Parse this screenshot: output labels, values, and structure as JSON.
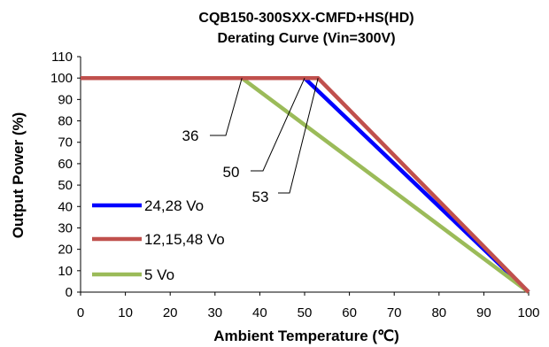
{
  "chart_data": {
    "type": "line",
    "title": "CQB150-300SXX-CMFD+HS(HD)",
    "subtitle": "Derating Curve (Vin=300V)",
    "xlabel": "Ambient Temperature (℃)",
    "ylabel": "Output Power (%)",
    "xlim": [
      0,
      100
    ],
    "ylim": [
      0,
      110
    ],
    "xticks": [
      0,
      10,
      20,
      30,
      40,
      50,
      60,
      70,
      80,
      90,
      100
    ],
    "yticks": [
      0,
      10,
      20,
      30,
      40,
      50,
      60,
      70,
      80,
      90,
      100,
      110
    ],
    "grid": false,
    "legend_position": "bottom-left",
    "series": [
      {
        "name": "24,28 Vo",
        "color": "#0000ff",
        "x": [
          0,
          50,
          100
        ],
        "y": [
          100,
          100,
          0
        ]
      },
      {
        "name": "12,15,48 Vo",
        "color": "#c0504d",
        "x": [
          0,
          53,
          100
        ],
        "y": [
          100,
          100,
          0
        ]
      },
      {
        "name": "5 Vo",
        "color": "#9bbb59",
        "x": [
          0,
          36,
          100
        ],
        "y": [
          100,
          100,
          0
        ]
      }
    ],
    "annotations": [
      {
        "text": "36",
        "x": 36,
        "y": 100
      },
      {
        "text": "50",
        "x": 50,
        "y": 100
      },
      {
        "text": "53",
        "x": 53,
        "y": 100
      }
    ]
  }
}
